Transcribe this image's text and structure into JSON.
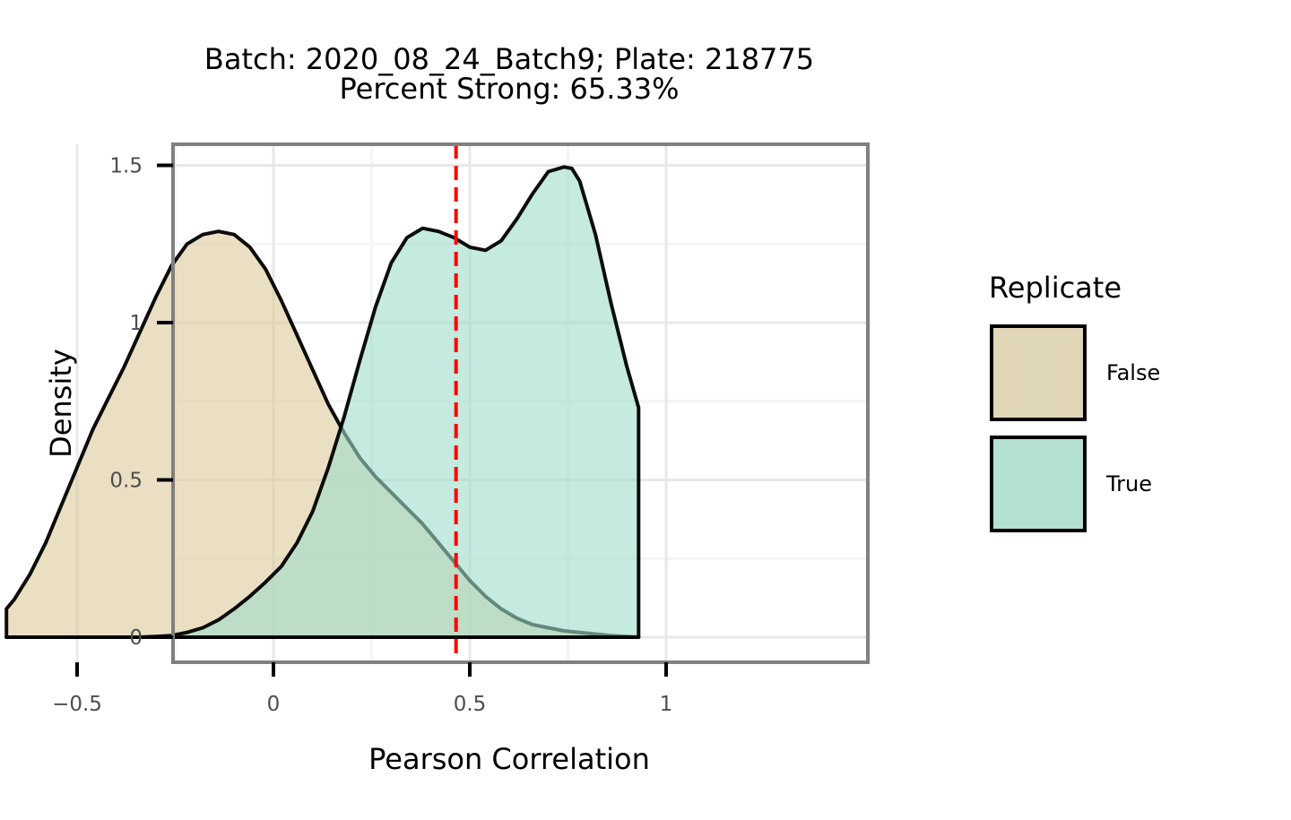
{
  "chart_data": {
    "type": "area",
    "title": "Batch: 2020_08_24_Batch9; Plate: 218775",
    "subtitle": "Percent Strong: 65.33%",
    "xlabel": "Pearson Correlation",
    "ylabel": "Density",
    "xlim": [
      -0.76,
      1.0
    ],
    "ylim": [
      -0.08,
      1.58
    ],
    "x_ticks": [
      -0.5,
      0,
      0.5,
      1
    ],
    "x_tick_labels": [
      "−0.5",
      "0",
      "0.5",
      "1"
    ],
    "y_ticks": [
      0,
      0.5,
      1,
      1.5
    ],
    "y_tick_labels": [
      "0",
      "0.5",
      "1",
      "1.5"
    ],
    "grid": true,
    "threshold": {
      "x": 0.465,
      "color": "#ff0000",
      "style": "dashed"
    },
    "legend": {
      "title": "Replicate",
      "position": "right",
      "entries": [
        {
          "label": "False",
          "color": "#e0d6b8"
        },
        {
          "label": "True",
          "color": "#b4e0d4"
        }
      ]
    },
    "series": [
      {
        "name": "False",
        "color": "#dcc99a",
        "x": [
          -0.68,
          -0.66,
          -0.62,
          -0.58,
          -0.54,
          -0.5,
          -0.46,
          -0.42,
          -0.38,
          -0.34,
          -0.3,
          -0.26,
          -0.22,
          -0.18,
          -0.14,
          -0.1,
          -0.06,
          -0.02,
          0.02,
          0.06,
          0.1,
          0.14,
          0.18,
          0.22,
          0.26,
          0.3,
          0.34,
          0.38,
          0.42,
          0.46,
          0.5,
          0.54,
          0.58,
          0.62,
          0.66,
          0.7,
          0.74,
          0.78,
          0.82,
          0.86,
          0.9,
          0.93
        ],
        "y": [
          0.09,
          0.12,
          0.2,
          0.3,
          0.42,
          0.54,
          0.66,
          0.76,
          0.86,
          0.97,
          1.08,
          1.18,
          1.25,
          1.28,
          1.29,
          1.28,
          1.24,
          1.17,
          1.07,
          0.96,
          0.85,
          0.74,
          0.65,
          0.57,
          0.51,
          0.46,
          0.41,
          0.36,
          0.3,
          0.24,
          0.18,
          0.13,
          0.09,
          0.06,
          0.04,
          0.03,
          0.02,
          0.015,
          0.01,
          0.005,
          0.002,
          0.0
        ]
      },
      {
        "name": "True",
        "color": "#9fdcca",
        "x": [
          -0.68,
          -0.6,
          -0.5,
          -0.4,
          -0.34,
          -0.3,
          -0.26,
          -0.22,
          -0.18,
          -0.14,
          -0.1,
          -0.06,
          -0.02,
          0.02,
          0.06,
          0.1,
          0.14,
          0.18,
          0.22,
          0.26,
          0.3,
          0.34,
          0.38,
          0.42,
          0.46,
          0.5,
          0.54,
          0.58,
          0.62,
          0.66,
          0.7,
          0.74,
          0.76,
          0.78,
          0.82,
          0.86,
          0.9,
          0.93
        ],
        "y": [
          0.0,
          0.0,
          0.0,
          0.0,
          0.0,
          0.002,
          0.005,
          0.015,
          0.03,
          0.055,
          0.09,
          0.13,
          0.175,
          0.225,
          0.3,
          0.4,
          0.54,
          0.7,
          0.88,
          1.05,
          1.19,
          1.27,
          1.3,
          1.29,
          1.27,
          1.24,
          1.23,
          1.26,
          1.33,
          1.41,
          1.48,
          1.495,
          1.49,
          1.45,
          1.28,
          1.06,
          0.86,
          0.73
        ]
      }
    ]
  }
}
